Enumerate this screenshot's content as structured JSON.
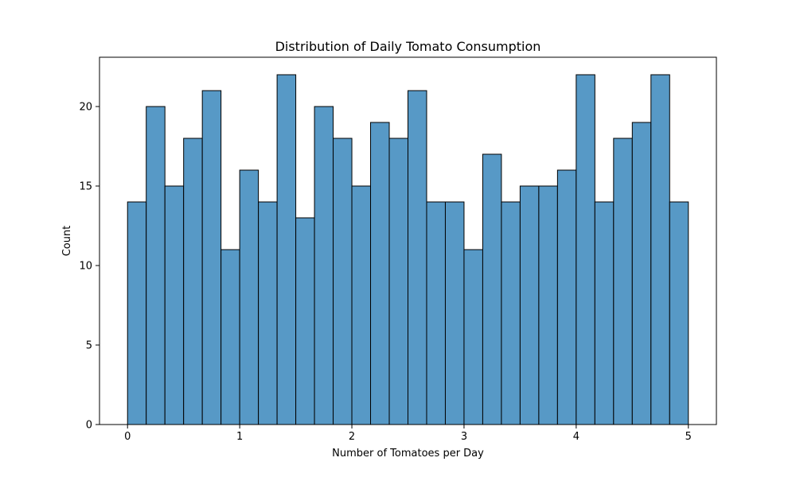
{
  "chart_data": {
    "type": "bar",
    "title": "Distribution of Daily Tomato Consumption",
    "xlabel": "Number of Tomatoes per Day",
    "ylabel": "Count",
    "bin_start": 0,
    "bin_end": 5,
    "values": [
      14,
      20,
      15,
      18,
      21,
      11,
      16,
      14,
      22,
      13,
      20,
      18,
      15,
      19,
      18,
      21,
      14,
      14,
      11,
      17,
      14,
      15,
      15,
      16,
      22,
      14,
      18,
      19,
      22,
      14
    ],
    "xlim": [
      -0.25,
      5.25
    ],
    "ylim": [
      0,
      23.1
    ],
    "xticks": [
      "0",
      "1",
      "2",
      "3",
      "4",
      "5"
    ],
    "yticks": [
      "0",
      "5",
      "10",
      "15",
      "20"
    ],
    "grid": false,
    "bar_color": "#5799c6",
    "edge_color": "#000000"
  }
}
